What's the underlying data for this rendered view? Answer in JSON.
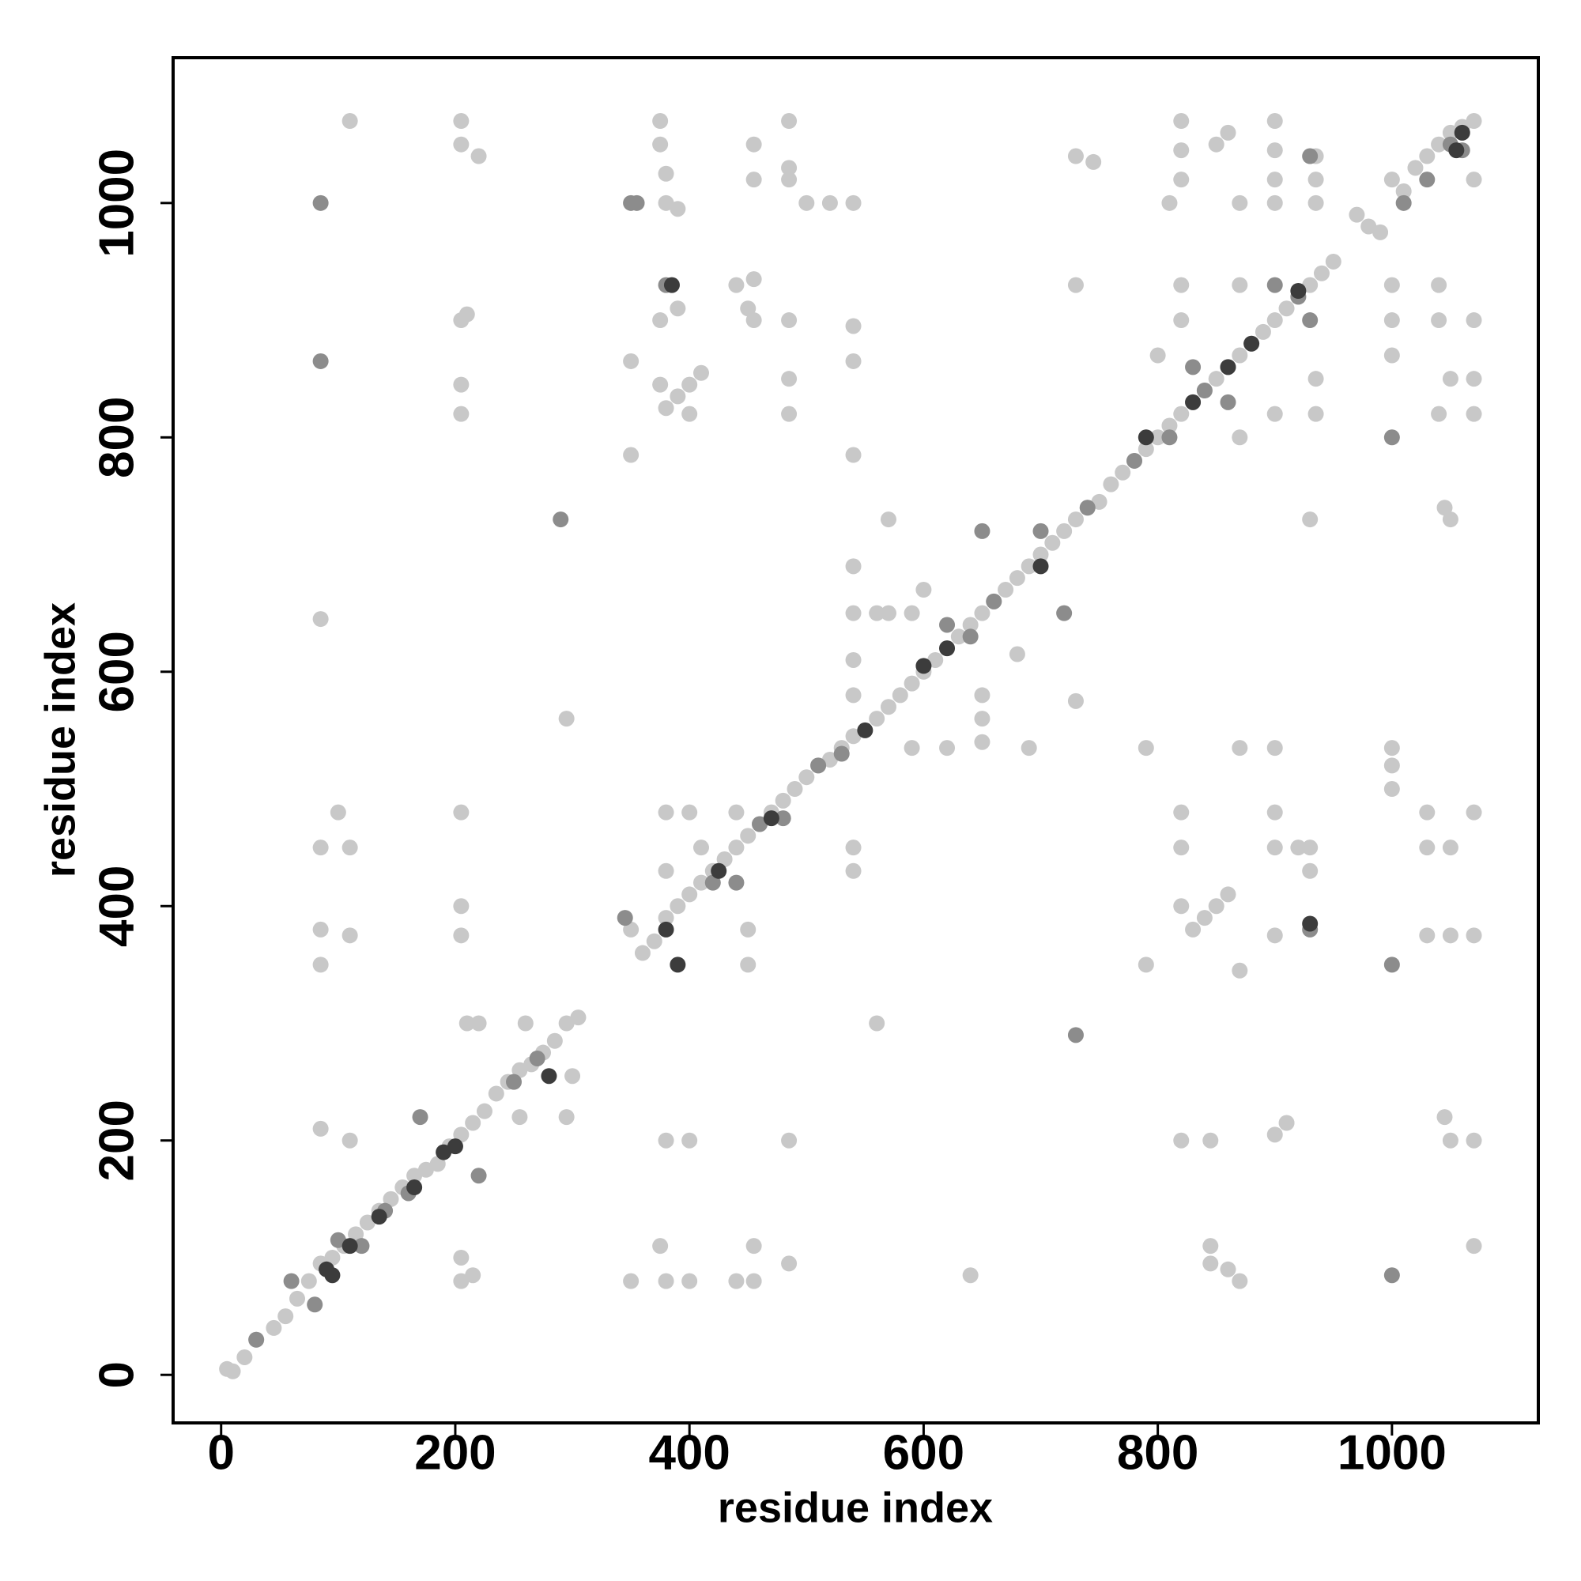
{
  "chart_data": {
    "type": "scatter",
    "x_label": "residue index",
    "y_label": "residue index",
    "xlim": [
      -41,
      1125
    ],
    "ylim": [
      -41,
      1124
    ],
    "xticks": [
      0,
      200,
      400,
      600,
      800,
      1000
    ],
    "yticks": [
      0,
      200,
      400,
      600,
      800,
      1000
    ],
    "series": [
      {
        "color": "#c8c8c8",
        "x": [
          5,
          10,
          20,
          30,
          45,
          55,
          65,
          75,
          85,
          95,
          105,
          115,
          125,
          135,
          145,
          155,
          165,
          175,
          185,
          195,
          205,
          215,
          225,
          235,
          245,
          255,
          265,
          275,
          285,
          295,
          305,
          350,
          360,
          370,
          380,
          390,
          400,
          410,
          420,
          430,
          440,
          450,
          460,
          470,
          480,
          490,
          500,
          510,
          520,
          530,
          540,
          560,
          570,
          580,
          590,
          600,
          610,
          620,
          630,
          640,
          650,
          660,
          670,
          680,
          690,
          700,
          710,
          720,
          730,
          740,
          750,
          760,
          770,
          780,
          790,
          800,
          810,
          820,
          830,
          840,
          850,
          860,
          870,
          880,
          890,
          900,
          910,
          920,
          930,
          940,
          950,
          970,
          980,
          990,
          1000,
          1010,
          1020,
          1030,
          1040,
          1050,
          1060,
          1070,
          85,
          85,
          85,
          85,
          110,
          110,
          110,
          100,
          110,
          205,
          205,
          220,
          210,
          205,
          205,
          205,
          205,
          205,
          205,
          205,
          205,
          215,
          375,
          375,
          380,
          380,
          390,
          375,
          390,
          375,
          380,
          390,
          400,
          410,
          350,
          350,
          400,
          440,
          450,
          455,
          455,
          455,
          455,
          485,
          485,
          485,
          485,
          485,
          485,
          500,
          520,
          540,
          540,
          540,
          540,
          540,
          540,
          540,
          540,
          540,
          540,
          560,
          570,
          590,
          570,
          600,
          590,
          620,
          650,
          650,
          650,
          690,
          680,
          730,
          730,
          730,
          745,
          790,
          790,
          810,
          800,
          820,
          820,
          820,
          820,
          820,
          820,
          820,
          820,
          830,
          840,
          850,
          860,
          850,
          860,
          870,
          870,
          870,
          870,
          870,
          900,
          900,
          900,
          900,
          900,
          900,
          900,
          900,
          900,
          900,
          910,
          920,
          930,
          930,
          935,
          935,
          935,
          930,
          935,
          935,
          1000,
          1000,
          1000,
          1000,
          1000,
          1000,
          1030,
          1030,
          1030,
          1040,
          1040,
          1040,
          1050,
          1050,
          1050,
          1050,
          1045,
          1070,
          1070,
          1070,
          1070,
          1070,
          1070,
          1070,
          1070,
          1045,
          1050,
          450,
          450,
          455,
          455,
          485,
          485,
          380,
          400,
          375,
          380,
          400,
          350,
          440,
          845,
          845,
          860,
          870,
          820,
          845,
          560,
          295,
          85,
          210,
          220,
          260,
          295,
          300,
          255,
          380,
          400,
          410,
          380,
          440,
          640
        ],
        "values": [
          5,
          3,
          15,
          30,
          40,
          50,
          65,
          80,
          95,
          100,
          110,
          120,
          130,
          140,
          150,
          160,
          170,
          175,
          180,
          195,
          205,
          215,
          225,
          240,
          250,
          260,
          265,
          275,
          285,
          300,
          305,
          380,
          360,
          370,
          390,
          400,
          410,
          420,
          430,
          440,
          450,
          460,
          470,
          480,
          490,
          500,
          510,
          520,
          525,
          535,
          545,
          560,
          570,
          580,
          590,
          600,
          610,
          620,
          630,
          640,
          650,
          660,
          670,
          680,
          690,
          700,
          710,
          720,
          730,
          740,
          745,
          760,
          770,
          780,
          790,
          800,
          810,
          820,
          830,
          840,
          850,
          860,
          870,
          880,
          890,
          900,
          910,
          920,
          930,
          940,
          950,
          990,
          980,
          975,
          1020,
          1010,
          1030,
          1040,
          1050,
          1060,
          1065,
          1070,
          450,
          380,
          350,
          210,
          200,
          450,
          375,
          480,
          1070,
          1070,
          1050,
          1040,
          905,
          900,
          845,
          820,
          480,
          400,
          375,
          100,
          80,
          85,
          1070,
          1050,
          1025,
          1000,
          995,
          900,
          910,
          845,
          825,
          835,
          845,
          855,
          865,
          785,
          820,
          930,
          910,
          900,
          935,
          1050,
          1020,
          1070,
          1030,
          1020,
          900,
          850,
          820,
          1000,
          1000,
          1000,
          895,
          865,
          785,
          690,
          650,
          610,
          580,
          450,
          430,
          650,
          650,
          650,
          730,
          670,
          535,
          535,
          560,
          580,
          540,
          535,
          615,
          575,
          930,
          1040,
          1035,
          535,
          350,
          1000,
          870,
          1070,
          1045,
          1020,
          930,
          900,
          480,
          450,
          400,
          380,
          390,
          400,
          410,
          1050,
          1060,
          930,
          1000,
          800,
          535,
          345,
          1070,
          1045,
          1020,
          1000,
          820,
          535,
          480,
          450,
          375,
          205,
          215,
          450,
          430,
          450,
          1040,
          1020,
          1000,
          730,
          850,
          820,
          930,
          900,
          870,
          535,
          520,
          500,
          480,
          450,
          375,
          930,
          900,
          820,
          850,
          450,
          375,
          200,
          220,
          480,
          375,
          200,
          110,
          900,
          850,
          820,
          1020,
          740,
          730,
          350,
          380,
          110,
          80,
          95,
          200,
          200,
          200,
          110,
          80,
          80,
          80,
          80,
          110,
          95,
          90,
          80,
          200,
          200,
          300,
          560,
          645,
          300,
          300,
          300,
          220,
          255,
          220,
          480,
          480,
          450,
          430,
          480,
          85
        ]
      },
      {
        "color": "#8c8c8c",
        "x": [
          85,
          350,
          355,
          380,
          290,
          730,
          1000,
          1000,
          930,
          1000,
          85,
          30,
          60,
          80,
          100,
          120,
          140,
          160,
          170,
          220,
          250,
          270,
          345,
          420,
          440,
          460,
          510,
          530,
          620,
          660,
          650,
          700,
          720,
          740,
          780,
          810,
          840,
          830,
          860,
          900,
          930,
          920,
          1010,
          1030,
          1050,
          1060,
          480,
          640,
          930
        ],
        "values": [
          1000,
          1000,
          1000,
          930,
          730,
          290,
          85,
          350,
          380,
          800,
          865,
          30,
          80,
          60,
          115,
          110,
          140,
          155,
          220,
          170,
          250,
          270,
          390,
          420,
          420,
          470,
          520,
          530,
          640,
          660,
          720,
          720,
          650,
          740,
          780,
          800,
          840,
          860,
          830,
          930,
          900,
          920,
          1000,
          1020,
          1050,
          1045,
          475,
          630,
          1040
        ]
      },
      {
        "color": "#3c3c3c",
        "x": [
          90,
          95,
          110,
          135,
          165,
          190,
          200,
          280,
          390,
          380,
          425,
          470,
          550,
          600,
          620,
          700,
          790,
          830,
          860,
          880,
          920,
          1060,
          1055,
          385,
          930
        ],
        "values": [
          90,
          85,
          110,
          135,
          160,
          190,
          195,
          255,
          350,
          380,
          430,
          475,
          550,
          605,
          620,
          690,
          800,
          830,
          860,
          880,
          925,
          1060,
          1045,
          930,
          385
        ]
      }
    ]
  }
}
